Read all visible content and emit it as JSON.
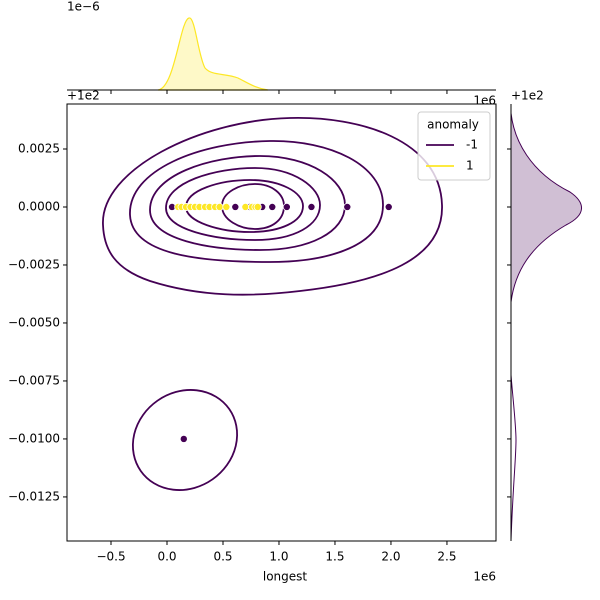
{
  "chart_data": {
    "type": "scatter",
    "x_label": "longest",
    "x_offset": "1e6",
    "y_offset": "+1e2",
    "top_y_offset": "1e−6",
    "top_x_offset": "1e6",
    "right_y_offset": "+1e2",
    "xlim": [
      -0.893,
      2.938
    ],
    "ylim": [
      -0.0144,
      0.00444
    ],
    "xticks": [
      {
        "value": -0.5,
        "label": "−0.5"
      },
      {
        "value": 0,
        "label": "0.0"
      },
      0.5,
      {
        "value": 1,
        "label": "1.0"
      },
      1.5,
      {
        "value": 2,
        "label": "2.0"
      },
      2.5
    ],
    "yticks": [
      0.0025,
      {
        "value": 0,
        "label": "0.0000"
      },
      {
        "value": -0.0025,
        "label": "−0.0025"
      },
      {
        "value": -0.005,
        "label": "−0.0050"
      },
      {
        "value": -0.0075,
        "label": "−0.0075"
      },
      {
        "value": -0.01,
        "label": "−0.0100"
      },
      {
        "value": -0.0125,
        "label": "−0.0125"
      }
    ],
    "legend_title": "anomaly",
    "legend_loc": "upper right",
    "series": [
      {
        "name": "-1",
        "color": "#440154",
        "x": [
          0.045,
          0.61,
          0.74,
          0.85,
          0.94,
          1.07,
          1.29,
          1.61,
          1.98,
          0.15
        ],
        "values": [
          0,
          0,
          0,
          0,
          0,
          0,
          0,
          0,
          0,
          -0.01
        ]
      },
      {
        "name": "1",
        "color": "#fde725",
        "x": [
          0.1,
          0.13,
          0.17,
          0.21,
          0.25,
          0.29,
          0.34,
          0.38,
          0.43,
          0.47,
          0.53,
          0.7,
          0.76,
          0.79,
          0.81
        ],
        "values": [
          0,
          0,
          0,
          0,
          0,
          0,
          0,
          0,
          0,
          0,
          0,
          0,
          0,
          0,
          0
        ]
      }
    ]
  }
}
